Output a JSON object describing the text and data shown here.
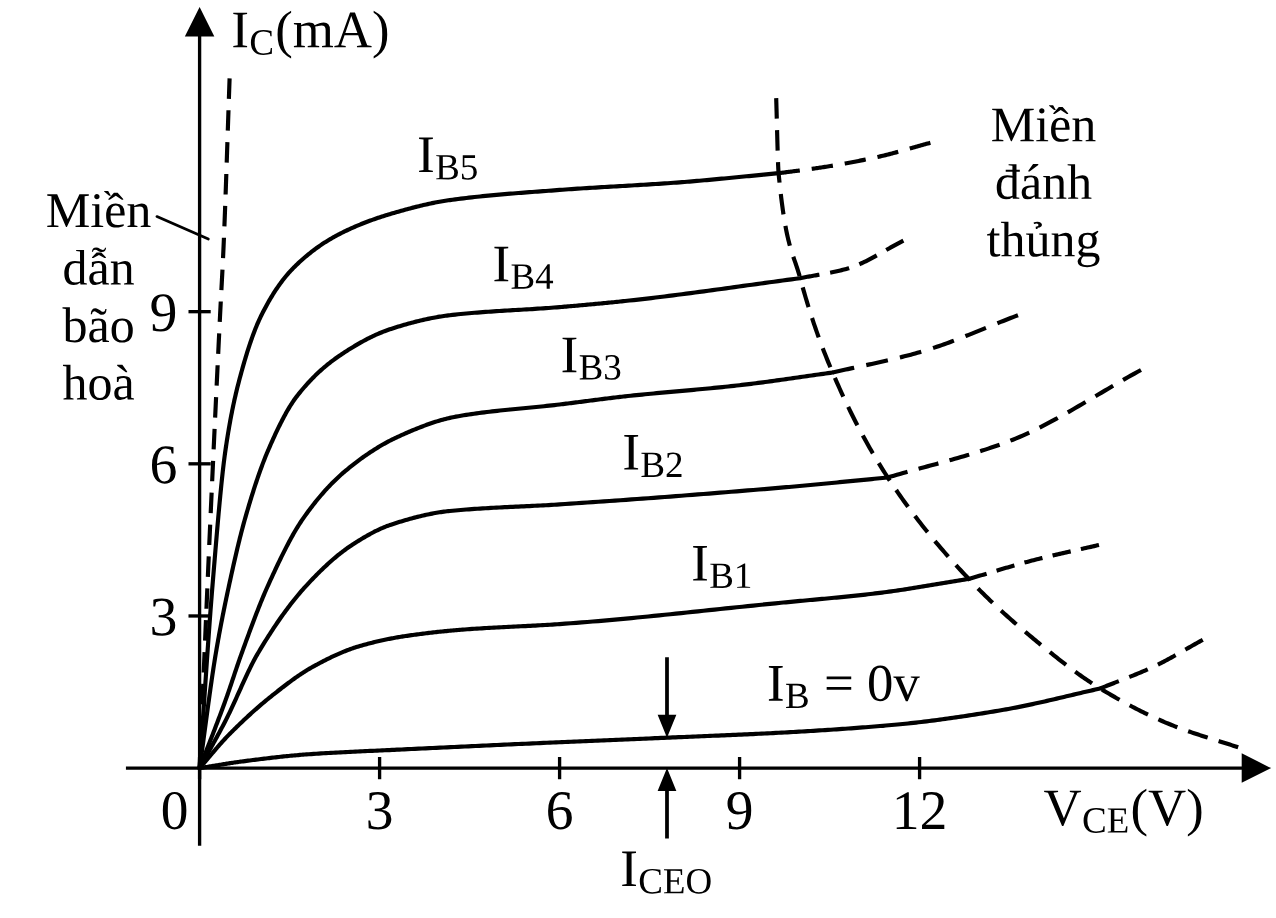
{
  "chart_data": {
    "type": "line",
    "xlabel": "V$_{CE}$(V)",
    "ylabel": "I$_{C}$(mA)",
    "xlim": [
      -1.2,
      17.6
    ],
    "ylim": [
      -1.5,
      14.7
    ],
    "xticks": [
      0,
      3,
      6,
      9,
      12
    ],
    "yticks": [
      3,
      6,
      9
    ],
    "line_style": "solid",
    "series": [
      {
        "name": "I$_{B}$ = 0v",
        "color": "#000000",
        "x": [
          0,
          0.7,
          1.78,
          3.41,
          5.79,
          7.79,
          9.7,
          11.63,
          13.4,
          15.01
        ],
        "values": [
          0,
          0.13,
          0.27,
          0.37,
          0.5,
          0.6,
          0.7,
          0.86,
          1.15,
          1.57
        ]
      },
      {
        "color": "#000000",
        "line_style": "dashed",
        "x": [
          15.01,
          15.9,
          16.72
        ],
        "values": [
          1.57,
          2.0,
          2.53
        ]
      },
      {
        "name": "I$_{B1}$",
        "color": "#000000",
        "x": [
          0,
          0.49,
          1.24,
          1.89,
          2.65,
          3.41,
          4.38,
          6.0,
          9.69,
          11.3,
          12.82
        ],
        "values": [
          0,
          0.66,
          1.46,
          2.0,
          2.4,
          2.6,
          2.73,
          2.84,
          3.26,
          3.45,
          3.73
        ]
      },
      {
        "color": "#000000",
        "line_style": "dashed",
        "x": [
          12.82,
          13.9,
          14.99
        ],
        "values": [
          3.73,
          4.1,
          4.4
        ]
      },
      {
        "name": "I$_{B2}$",
        "color": "#000000",
        "x": [
          0,
          0.43,
          0.97,
          1.78,
          2.54,
          3.19,
          4.17,
          6.0,
          9.69,
          11.47
        ],
        "values": [
          0,
          0.93,
          2.26,
          3.6,
          4.4,
          4.8,
          5.07,
          5.2,
          5.53,
          5.73
        ]
      },
      {
        "color": "#000000",
        "line_style": "dashed",
        "x": [
          11.47,
          13.5,
          15.69
        ],
        "values": [
          5.73,
          6.45,
          7.85
        ]
      },
      {
        "name": "I$_{B3}$",
        "color": "#000000",
        "x": [
          0,
          0.43,
          0.7,
          1.14,
          1.73,
          2.43,
          3.3,
          4.27,
          6.0,
          7.09,
          9.0,
          10.55
        ],
        "values": [
          0,
          1.33,
          2.26,
          3.6,
          4.93,
          5.86,
          6.53,
          6.93,
          7.17,
          7.33,
          7.55,
          7.8
        ]
      },
      {
        "color": "#000000",
        "line_style": "dashed",
        "x": [
          10.55,
          12.0,
          13.64
        ],
        "values": [
          7.8,
          8.2,
          8.93
        ]
      },
      {
        "name": "I$_{B4}$",
        "color": "#000000",
        "x": [
          0,
          0.27,
          0.49,
          0.76,
          1.14,
          1.62,
          2.33,
          3.19,
          4.17,
          6.0,
          7.09,
          10.01
        ],
        "values": [
          0,
          2.26,
          3.6,
          4.93,
          6.26,
          7.33,
          8.13,
          8.66,
          8.93,
          9.09,
          9.21,
          9.66
        ]
      },
      {
        "color": "#000000",
        "line_style": "dashed",
        "x": [
          10.01,
          10.8,
          11.73
        ],
        "values": [
          9.66,
          9.85,
          10.4
        ]
      },
      {
        "name": "I$_{B5}$",
        "color": "#000000",
        "x": [
          0,
          0.215,
          0.43,
          0.65,
          1.03,
          1.57,
          2.33,
          3.19,
          4.17,
          6.0,
          8.0,
          9.65
        ],
        "values": [
          0,
          3.6,
          6.26,
          7.6,
          8.93,
          9.87,
          10.53,
          10.93,
          11.2,
          11.4,
          11.55,
          11.73
        ]
      },
      {
        "color": "#000000",
        "line_style": "dashed",
        "x": [
          9.65,
          10.4,
          11.3,
          12.18
        ],
        "values": [
          11.73,
          11.85,
          12.05,
          12.33
        ]
      },
      {
        "color": "#000000",
        "line_style": "dashed",
        "x": [
          9.61,
          9.65,
          10.01,
          10.55,
          11.47,
          12.82,
          13.9,
          15.01,
          16.2,
          17.31
        ],
        "values": [
          13.21,
          11.73,
          9.66,
          7.8,
          5.73,
          3.73,
          2.55,
          1.57,
          0.85,
          0.41
        ]
      },
      {
        "color": "#000000",
        "line_style": "dashed",
        "x": [
          0,
          0.18,
          0.34,
          0.4,
          0.5
        ],
        "values": [
          0,
          4.9,
          8.9,
          10.3,
          13.6
        ]
      }
    ],
    "annotations": [
      {
        "text": "Miền\ndẫn\nbão\nhoà",
        "x": 0.4,
        "y": 10.3
      },
      "Miền\nđánh\nthủng",
      {
        "text": "I$_{CEO}$",
        "x": 7.79,
        "y": 0.6
      }
    ]
  }
}
